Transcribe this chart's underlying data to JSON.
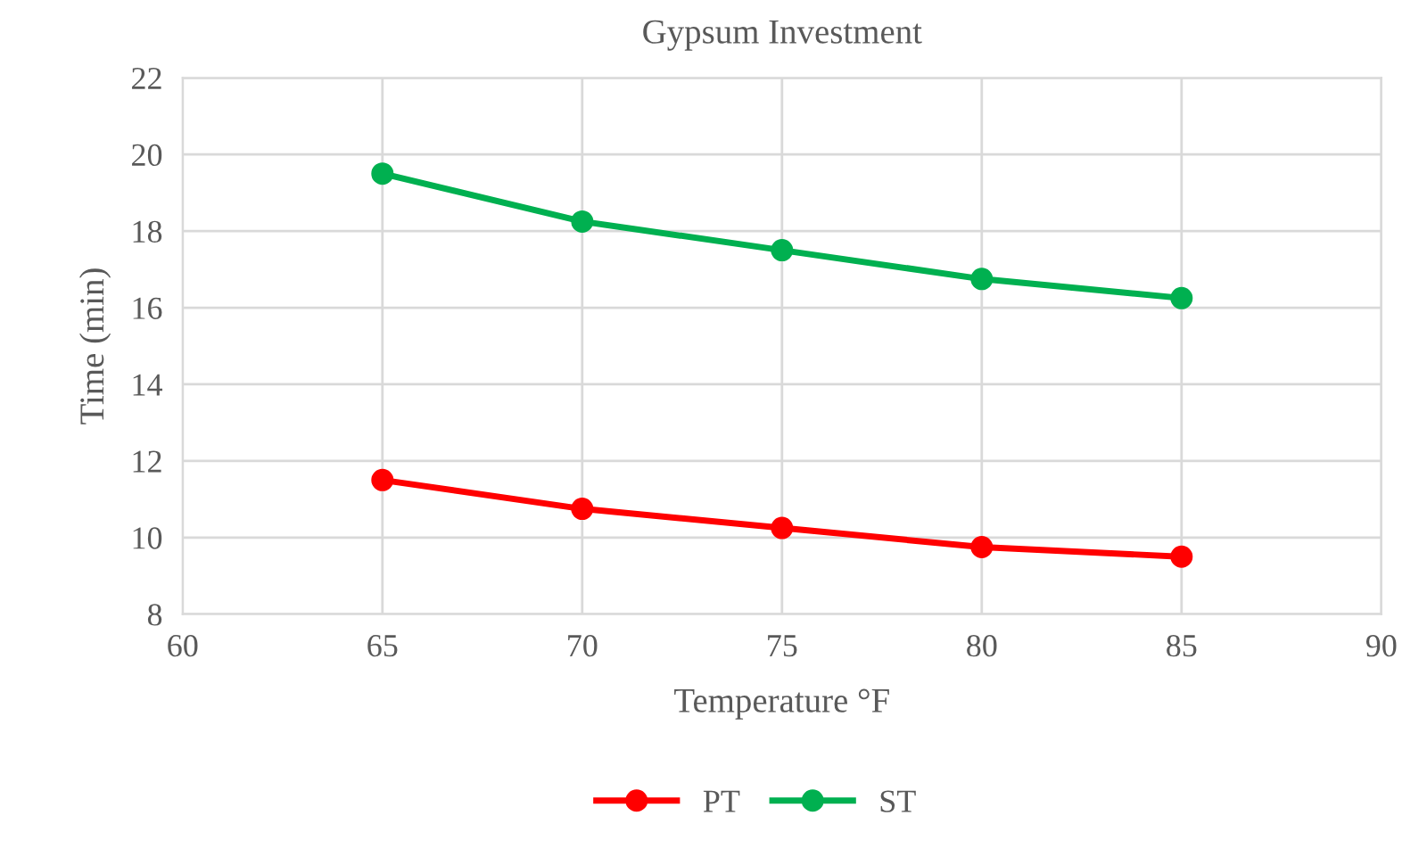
{
  "chart_data": {
    "type": "line",
    "title": "Gypsum Investment",
    "xlabel": "Temperature °F",
    "ylabel": "Time (min)",
    "x": [
      65,
      70,
      75,
      80,
      85
    ],
    "series": [
      {
        "name": "PT",
        "color": "#ff0000",
        "values": [
          11.5,
          10.75,
          10.25,
          9.75,
          9.5
        ]
      },
      {
        "name": "ST",
        "color": "#00b050",
        "values": [
          19.5,
          18.25,
          17.5,
          16.75,
          16.25
        ]
      }
    ],
    "xlim": [
      60,
      90
    ],
    "xticks": [
      60,
      65,
      70,
      75,
      80,
      85,
      90
    ],
    "ylim": [
      8,
      22
    ],
    "yticks": [
      8,
      10,
      12,
      14,
      16,
      18,
      20,
      22
    ],
    "grid": true,
    "legend": "bottom",
    "marker": "circle",
    "line_style": "solid"
  }
}
